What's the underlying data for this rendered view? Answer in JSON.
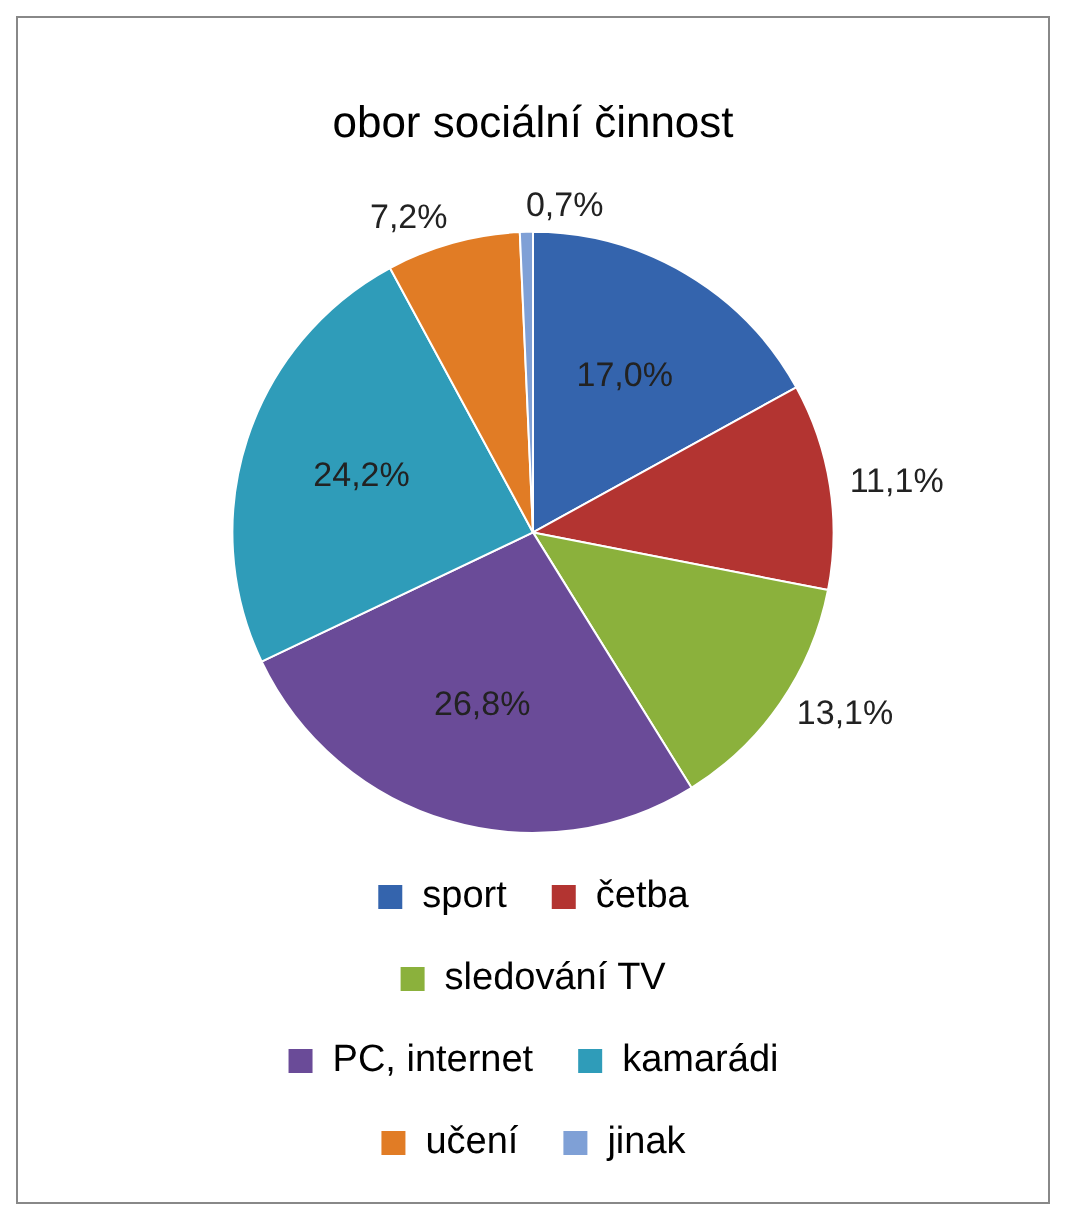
{
  "chart_data": {
    "type": "pie",
    "title": "obor sociální činnost",
    "categories": [
      "sport",
      "četba",
      "sledování TV",
      "PC, internet",
      "kamarádi",
      "učení",
      "jinak"
    ],
    "values": [
      17.0,
      11.1,
      13.1,
      26.8,
      24.2,
      7.2,
      0.7
    ],
    "value_labels": [
      "17,0%",
      "11,1%",
      "13,1%",
      "26,8%",
      "24,2%",
      "7,2%",
      "0,7%"
    ],
    "colors": [
      "#3464ad",
      "#b33431",
      "#8bb13c",
      "#6a4b98",
      "#2f9cb9",
      "#e17c25",
      "#7fa0d6"
    ],
    "legend": "bottom"
  }
}
